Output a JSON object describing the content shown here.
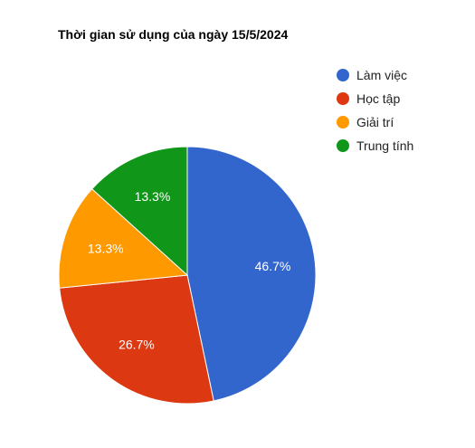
{
  "chart_data": {
    "type": "pie",
    "title": "Thời gian sử dụng của ngày 15/5/2024",
    "legend_position": "right",
    "slices": [
      {
        "label": "Làm việc",
        "value": 46.7,
        "value_label": "46.7%",
        "color": "#3366CC"
      },
      {
        "label": "Học tập",
        "value": 26.7,
        "value_label": "26.7%",
        "color": "#DC3912"
      },
      {
        "label": "Giải trí",
        "value": 13.3,
        "value_label": "13.3%",
        "color": "#FF9900"
      },
      {
        "label": "Trung tính",
        "value": 13.3,
        "value_label": "13.3%",
        "color": "#109618"
      }
    ]
  }
}
